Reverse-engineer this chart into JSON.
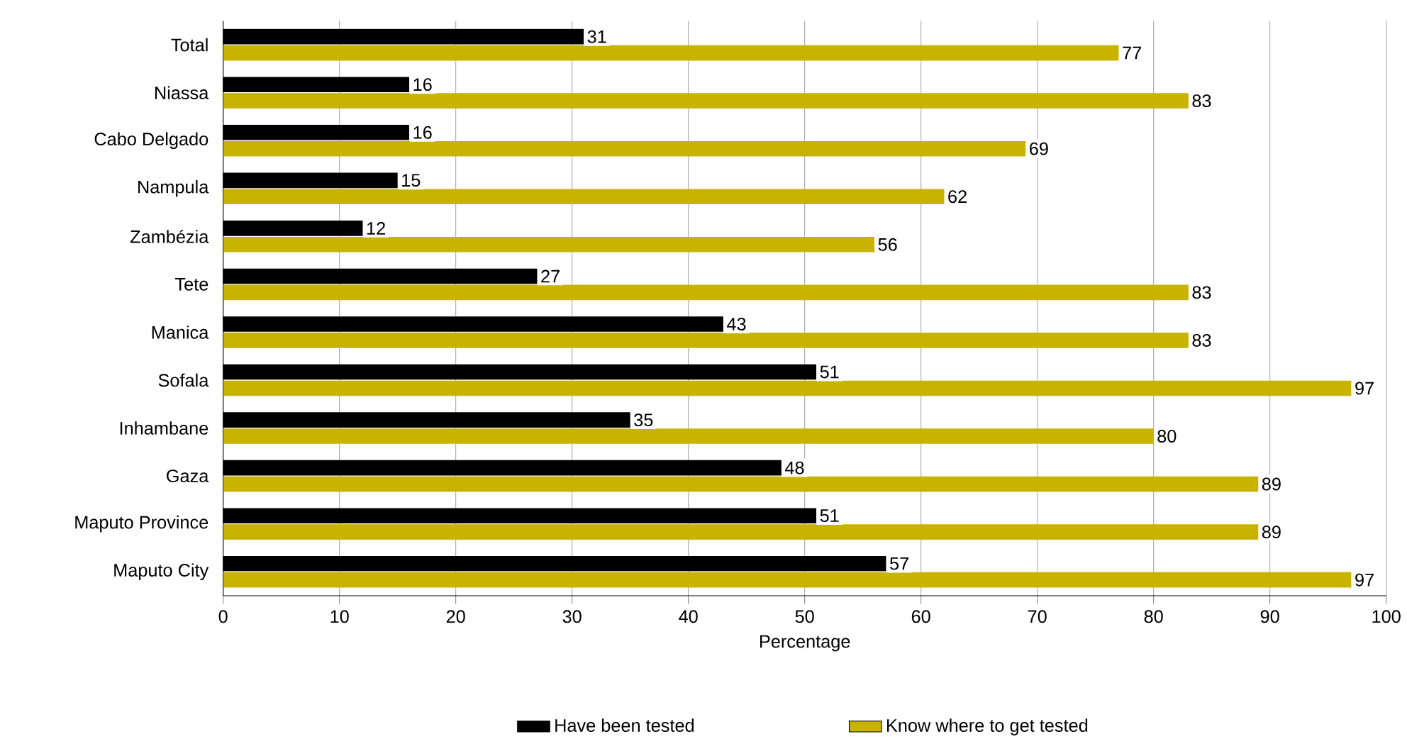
{
  "chart_data": {
    "type": "bar",
    "orientation": "horizontal",
    "xlabel": "Percentage",
    "categories": [
      "Total",
      "Niassa",
      "Cabo Delgado",
      "Nampula",
      "Zambézia",
      "Tete",
      "Manica",
      "Sofala",
      "Inhambane",
      "Gaza",
      "Maputo Province",
      "Maputo City"
    ],
    "series": [
      {
        "name": "Have been tested",
        "color": "#000000",
        "values": [
          31,
          16,
          16,
          15,
          12,
          27,
          43,
          51,
          35,
          48,
          51,
          57
        ]
      },
      {
        "name": "Know where to get tested",
        "color": "#c8b400",
        "values": [
          77,
          83,
          69,
          62,
          56,
          83,
          83,
          97,
          80,
          89,
          89,
          97
        ]
      }
    ],
    "xlim": [
      0,
      100
    ],
    "xticks": [
      0,
      10,
      20,
      30,
      40,
      50,
      60,
      70,
      80,
      90,
      100
    ],
    "grid": "x",
    "legend": "bottom",
    "data_labels": true
  }
}
